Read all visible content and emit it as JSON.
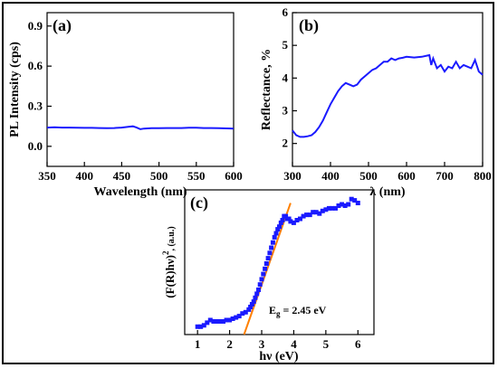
{
  "chart_data": [
    {
      "id": "a",
      "type": "line",
      "panel_label": "(a)",
      "xlabel": "Wavelength (nm)",
      "ylabel": "PL Intensity (cps)",
      "xlim": [
        350,
        600
      ],
      "ylim": [
        -0.15,
        1.0
      ],
      "xticks": [
        350,
        400,
        450,
        500,
        550,
        600
      ],
      "yticks": [
        0.0,
        0.3,
        0.6,
        0.9
      ],
      "ytick_labels": [
        "0.0",
        "0.3",
        "0.6",
        "0.9"
      ],
      "color": "#1a1aff",
      "x": [
        350,
        360,
        370,
        380,
        390,
        400,
        410,
        420,
        430,
        440,
        450,
        460,
        465,
        470,
        475,
        480,
        490,
        500,
        510,
        520,
        530,
        540,
        550,
        560,
        570,
        580,
        590,
        600
      ],
      "y": [
        0.14,
        0.142,
        0.14,
        0.14,
        0.139,
        0.138,
        0.138,
        0.137,
        0.136,
        0.137,
        0.14,
        0.147,
        0.15,
        0.14,
        0.128,
        0.133,
        0.136,
        0.136,
        0.137,
        0.137,
        0.137,
        0.139,
        0.139,
        0.137,
        0.137,
        0.136,
        0.134,
        0.133
      ]
    },
    {
      "id": "b",
      "type": "line",
      "panel_label": "(b)",
      "xlabel": "λ (nm)",
      "ylabel": "Reflectance, %",
      "xlim": [
        300,
        800
      ],
      "ylim": [
        1.3,
        6.0
      ],
      "xticks": [
        300,
        400,
        500,
        600,
        700,
        800
      ],
      "yticks": [
        2,
        3,
        4,
        5,
        6
      ],
      "ytick_labels": [
        "2",
        "3",
        "4",
        "5",
        "6"
      ],
      "color": "#1a1aff",
      "x": [
        300,
        310,
        320,
        330,
        340,
        350,
        360,
        370,
        380,
        390,
        400,
        410,
        420,
        430,
        440,
        450,
        460,
        470,
        480,
        490,
        500,
        510,
        520,
        530,
        540,
        550,
        560,
        570,
        580,
        590,
        600,
        620,
        640,
        660,
        665,
        670,
        680,
        690,
        700,
        710,
        720,
        730,
        740,
        750,
        760,
        770,
        780,
        790,
        800
      ],
      "y": [
        2.4,
        2.25,
        2.2,
        2.2,
        2.22,
        2.25,
        2.35,
        2.5,
        2.7,
        2.95,
        3.2,
        3.4,
        3.6,
        3.75,
        3.85,
        3.8,
        3.75,
        3.8,
        3.95,
        4.05,
        4.15,
        4.25,
        4.3,
        4.4,
        4.5,
        4.5,
        4.6,
        4.55,
        4.6,
        4.62,
        4.65,
        4.63,
        4.65,
        4.7,
        4.4,
        4.6,
        4.3,
        4.4,
        4.2,
        4.35,
        4.3,
        4.5,
        4.3,
        4.4,
        4.35,
        4.3,
        4.55,
        4.2,
        4.1
      ]
    },
    {
      "id": "c",
      "type": "scatter",
      "panel_label": "(c)",
      "xlabel": "hν (eV)",
      "ylabel": "(F(R)hν)², (a.u.)",
      "ylabel_parts": {
        "base": "(F(R)hν)",
        "sup": "2",
        "tail": ", (a.u.)"
      },
      "xlim": [
        0.6,
        6.5
      ],
      "ylim": [
        0,
        1.1
      ],
      "xticks": [
        1,
        2,
        3,
        4,
        5,
        6
      ],
      "color": "#1a1aff",
      "fit_color": "#ff8000",
      "annotation": {
        "text_base": "E",
        "text_sub": "g",
        "text_tail": " = 2.45 eV"
      },
      "x": [
        1.0,
        1.1,
        1.2,
        1.3,
        1.4,
        1.5,
        1.6,
        1.7,
        1.8,
        1.9,
        2.0,
        2.1,
        2.2,
        2.3,
        2.4,
        2.5,
        2.6,
        2.65,
        2.7,
        2.75,
        2.8,
        2.85,
        2.9,
        2.95,
        3.0,
        3.05,
        3.1,
        3.15,
        3.2,
        3.25,
        3.3,
        3.35,
        3.4,
        3.45,
        3.5,
        3.55,
        3.6,
        3.65,
        3.7,
        3.75,
        3.8,
        3.85,
        3.9,
        4.0,
        4.1,
        4.2,
        4.3,
        4.4,
        4.5,
        4.6,
        4.7,
        4.8,
        4.9,
        5.0,
        5.1,
        5.2,
        5.3,
        5.4,
        5.5,
        5.6,
        5.7,
        5.8,
        5.9,
        6.0
      ],
      "y": [
        0.06,
        0.06,
        0.07,
        0.09,
        0.11,
        0.1,
        0.1,
        0.1,
        0.1,
        0.11,
        0.11,
        0.12,
        0.13,
        0.14,
        0.16,
        0.17,
        0.19,
        0.21,
        0.23,
        0.25,
        0.28,
        0.31,
        0.34,
        0.38,
        0.42,
        0.46,
        0.5,
        0.54,
        0.58,
        0.62,
        0.66,
        0.7,
        0.74,
        0.77,
        0.8,
        0.82,
        0.85,
        0.87,
        0.9,
        0.9,
        0.88,
        0.88,
        0.86,
        0.85,
        0.87,
        0.88,
        0.9,
        0.91,
        0.91,
        0.93,
        0.93,
        0.92,
        0.94,
        0.95,
        0.96,
        0.96,
        0.96,
        0.98,
        0.99,
        0.98,
        0.99,
        1.03,
        1.02,
        1.0
      ],
      "fit_line": {
        "x": [
          2.45,
          3.9
        ],
        "y": [
          0.0,
          1.0
        ]
      }
    }
  ]
}
